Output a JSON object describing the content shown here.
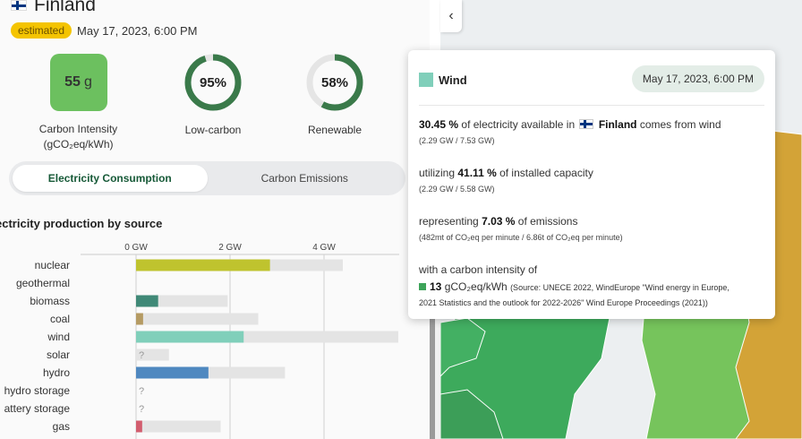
{
  "zone": {
    "name": "Finland",
    "badge": "estimated",
    "datetime": "May 17, 2023, 6:00 PM"
  },
  "metrics": {
    "carbon_intensity": {
      "value": "55",
      "unit": "g",
      "label_line1": "Carbon Intensity",
      "label_line2": "(gCO₂eq/kWh)",
      "color": "#6cc05f"
    },
    "low_carbon": {
      "value": "95%",
      "fraction": 0.95,
      "label": "Low-carbon",
      "color": "#3a7a4a"
    },
    "renewable": {
      "value": "58%",
      "fraction": 0.58,
      "label": "Renewable",
      "color": "#3a7a4a"
    }
  },
  "toggle": {
    "active": "Electricity Consumption",
    "inactive": "Carbon Emissions"
  },
  "section_title": "ectricity production by source",
  "chart_data": {
    "type": "bar",
    "x_ticks": [
      "0 GW",
      "2 GW",
      "4 GW"
    ],
    "tick_values": [
      0,
      2,
      4
    ],
    "xlim": [
      0,
      5.6
    ],
    "categories": [
      "nuclear",
      "geothermal",
      "biomass",
      "coal",
      "wind",
      "solar",
      "hydro",
      "hydro storage",
      "battery storage",
      "gas"
    ],
    "category_labels": [
      "nuclear",
      "geothermal",
      "biomass",
      "coal",
      "wind",
      "solar",
      "hydro",
      "hydro storage",
      "attery storage",
      "gas"
    ],
    "production": [
      2.85,
      null,
      0.47,
      0.15,
      2.29,
      null,
      1.54,
      null,
      null,
      0.13
    ],
    "capacity": [
      4.4,
      null,
      1.95,
      2.6,
      5.58,
      0.7,
      3.17,
      null,
      null,
      1.8
    ],
    "unknown_marker": "?",
    "colors": {
      "nuclear": "#bfc32e",
      "biomass": "#408977",
      "coal": "#b59b63",
      "wind": "#80cfba",
      "hydro": "#4f88c0",
      "gas": "#d25d6e",
      "capacity": "#e4e4e4"
    }
  },
  "tooltip": {
    "source_name": "Wind",
    "source_color": "#80cfba",
    "date": "May 17, 2023, 6:00 PM",
    "line1": {
      "pct": "30.45 %",
      "pre": "of electricity available in",
      "zone": "Finland",
      "post": "comes from wind",
      "sub": "(2.29 GW / 7.53 GW)"
    },
    "line2": {
      "pre": "utilizing",
      "pct": "41.11 %",
      "post": "of installed capacity",
      "sub": "(2.29 GW / 5.58 GW)"
    },
    "line3": {
      "pre": "representing",
      "pct": "7.03 %",
      "post": "of emissions",
      "sub": "(482mt of CO₂eq per minute / 6.86t of CO₂eq per minute)"
    },
    "line4": {
      "pre": "with a carbon intensity of",
      "value": "13",
      "unit": "gCO₂eq/kWh",
      "source": "(Source: UNECE 2022, WindEurope \"Wind energy in Europe,",
      "source2": "2021 Statistics and the outlook for 2022-2026\" Wind Europe Proceedings (2021))",
      "color": "#3da45a"
    }
  },
  "icons": {
    "collapse": "chevron-left-icon",
    "flag": "finland-flag-icon"
  }
}
